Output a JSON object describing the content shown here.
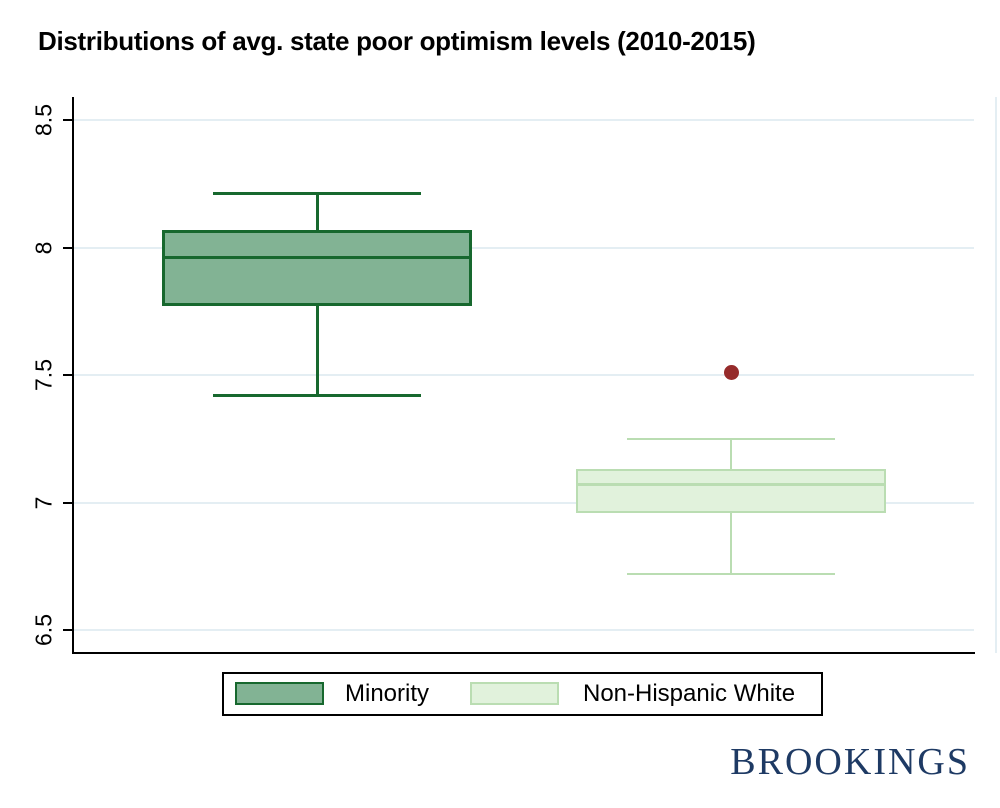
{
  "page": {
    "title": "Distributions of avg. state poor optimism levels (2010-2015)"
  },
  "chart_data": {
    "type": "boxplot",
    "title": "Distributions of avg. state poor optimism levels (2010-2015)",
    "xlabel": "",
    "ylabel": "",
    "ylim": [
      6.41,
      8.59
    ],
    "grid": true,
    "legend_position": "bottom",
    "yticks": [
      {
        "value": 8.5,
        "label": "8.5"
      },
      {
        "value": 8.0,
        "label": "8"
      },
      {
        "value": 7.5,
        "label": "7.5"
      },
      {
        "value": 7.0,
        "label": "7"
      },
      {
        "value": 6.5,
        "label": "6.5"
      }
    ],
    "series": [
      {
        "name": "Minority",
        "whisker_high": 8.21,
        "q3": 8.07,
        "median": 7.96,
        "q1": 7.77,
        "whisker_low": 7.42,
        "outliers": [],
        "fill_color": "#82b394",
        "stroke_color": "#17682e"
      },
      {
        "name": "Non-Hispanic White",
        "whisker_high": 7.25,
        "q3": 7.13,
        "median": 7.07,
        "q1": 6.96,
        "whisker_low": 6.72,
        "outliers": [
          7.51
        ],
        "fill_color": "#e1f2dc",
        "stroke_color": "#baddb2"
      }
    ],
    "outlier_color": "#962b2b",
    "gridline_color": "#e4eef3"
  },
  "legend": {
    "items": [
      {
        "label": "Minority"
      },
      {
        "label": "Non-Hispanic White"
      }
    ]
  },
  "branding": {
    "logo_text": "BROOKINGS",
    "color": "#1e3a64"
  }
}
